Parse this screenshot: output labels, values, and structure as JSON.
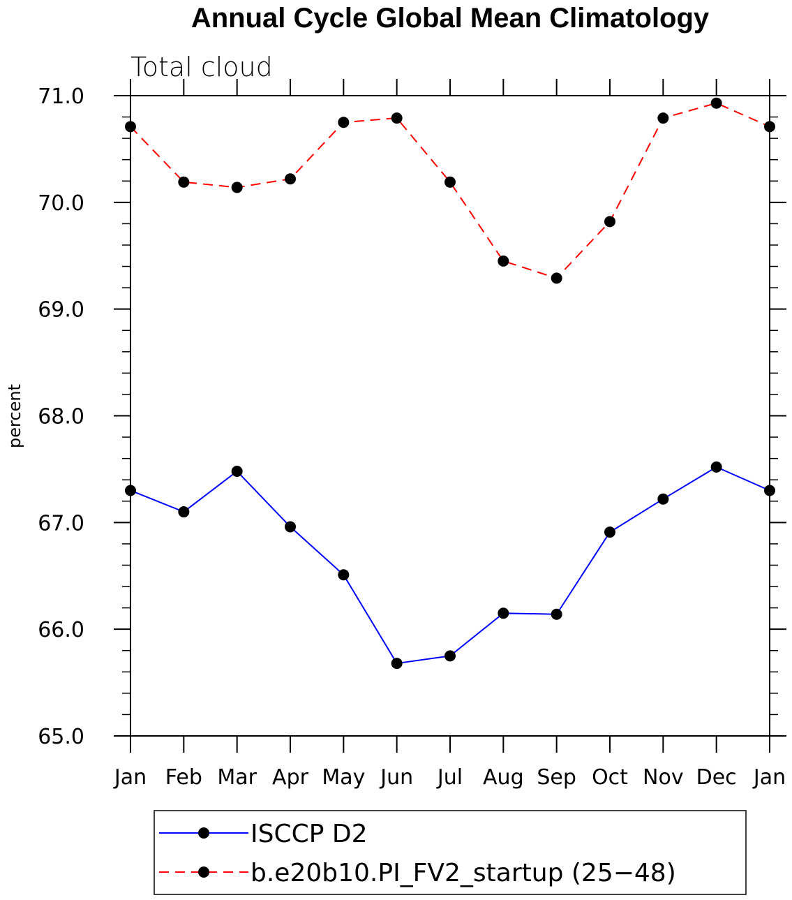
{
  "chart_data": {
    "type": "line",
    "title": "Annual Cycle Global Mean Climatology",
    "subtitle": "Total cloud",
    "xlabel": "",
    "ylabel": "percent",
    "categories": [
      "Jan",
      "Feb",
      "Mar",
      "Apr",
      "May",
      "Jun",
      "Jul",
      "Aug",
      "Sep",
      "Oct",
      "Nov",
      "Dec",
      "Jan"
    ],
    "ylim": [
      65.0,
      71.0
    ],
    "yticks": [
      "65.0",
      "66.0",
      "67.0",
      "68.0",
      "69.0",
      "70.0",
      "71.0"
    ],
    "grid": false,
    "legend_position": "bottom",
    "series": [
      {
        "name": "ISCCP D2",
        "color": "#0000ff",
        "line_style": "solid",
        "marker": "filled-circle",
        "values": [
          67.3,
          67.1,
          67.48,
          66.96,
          66.51,
          65.68,
          65.75,
          66.15,
          66.14,
          66.91,
          67.22,
          67.52,
          67.3
        ]
      },
      {
        "name": "b.e20b10.PI_FV2_startup (25−48)",
        "color": "#ff0000",
        "line_style": "dashed",
        "marker": "filled-circle",
        "values": [
          70.71,
          70.19,
          70.14,
          70.22,
          70.75,
          70.79,
          70.19,
          69.45,
          69.29,
          69.82,
          70.79,
          70.93,
          70.71
        ]
      }
    ]
  }
}
